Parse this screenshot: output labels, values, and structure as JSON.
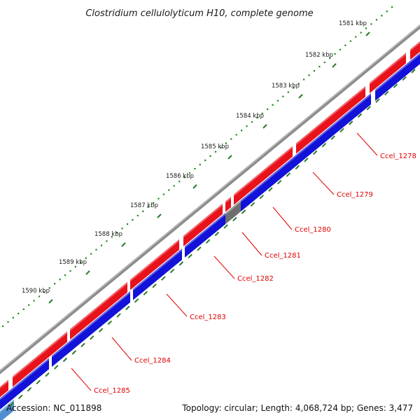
{
  "title": "Clostridium cellulolyticum H10, complete genome",
  "footer": {
    "accession": "Accession: NC_011898",
    "summary": "Topology: circular; Length: 4,068,724 bp; Genes: 3,477"
  },
  "ruler": {
    "labels": [
      "1581 kbp",
      "1582 kbp",
      "1583 kbp",
      "1584 kbp",
      "1585 kbp",
      "1586 kbp",
      "1587 kbp",
      "1588 kbp",
      "1589 kbp",
      "1590 kbp"
    ]
  },
  "gene_labels": [
    "Ccel_1278",
    "Ccel_1279",
    "Ccel_1280",
    "Ccel_1281",
    "Ccel_1282",
    "Ccel_1283",
    "Ccel_1284",
    "Ccel_1285"
  ],
  "colors": {
    "backbone": "#8c8c8c",
    "forward_gene": "#e8121a",
    "reverse_gene": "#1212d8",
    "unknown_gene": "#6e6e6e",
    "label": "#e00000",
    "tick": "#2a7a2a",
    "nucleotide_dot": "#1f8a1f"
  }
}
